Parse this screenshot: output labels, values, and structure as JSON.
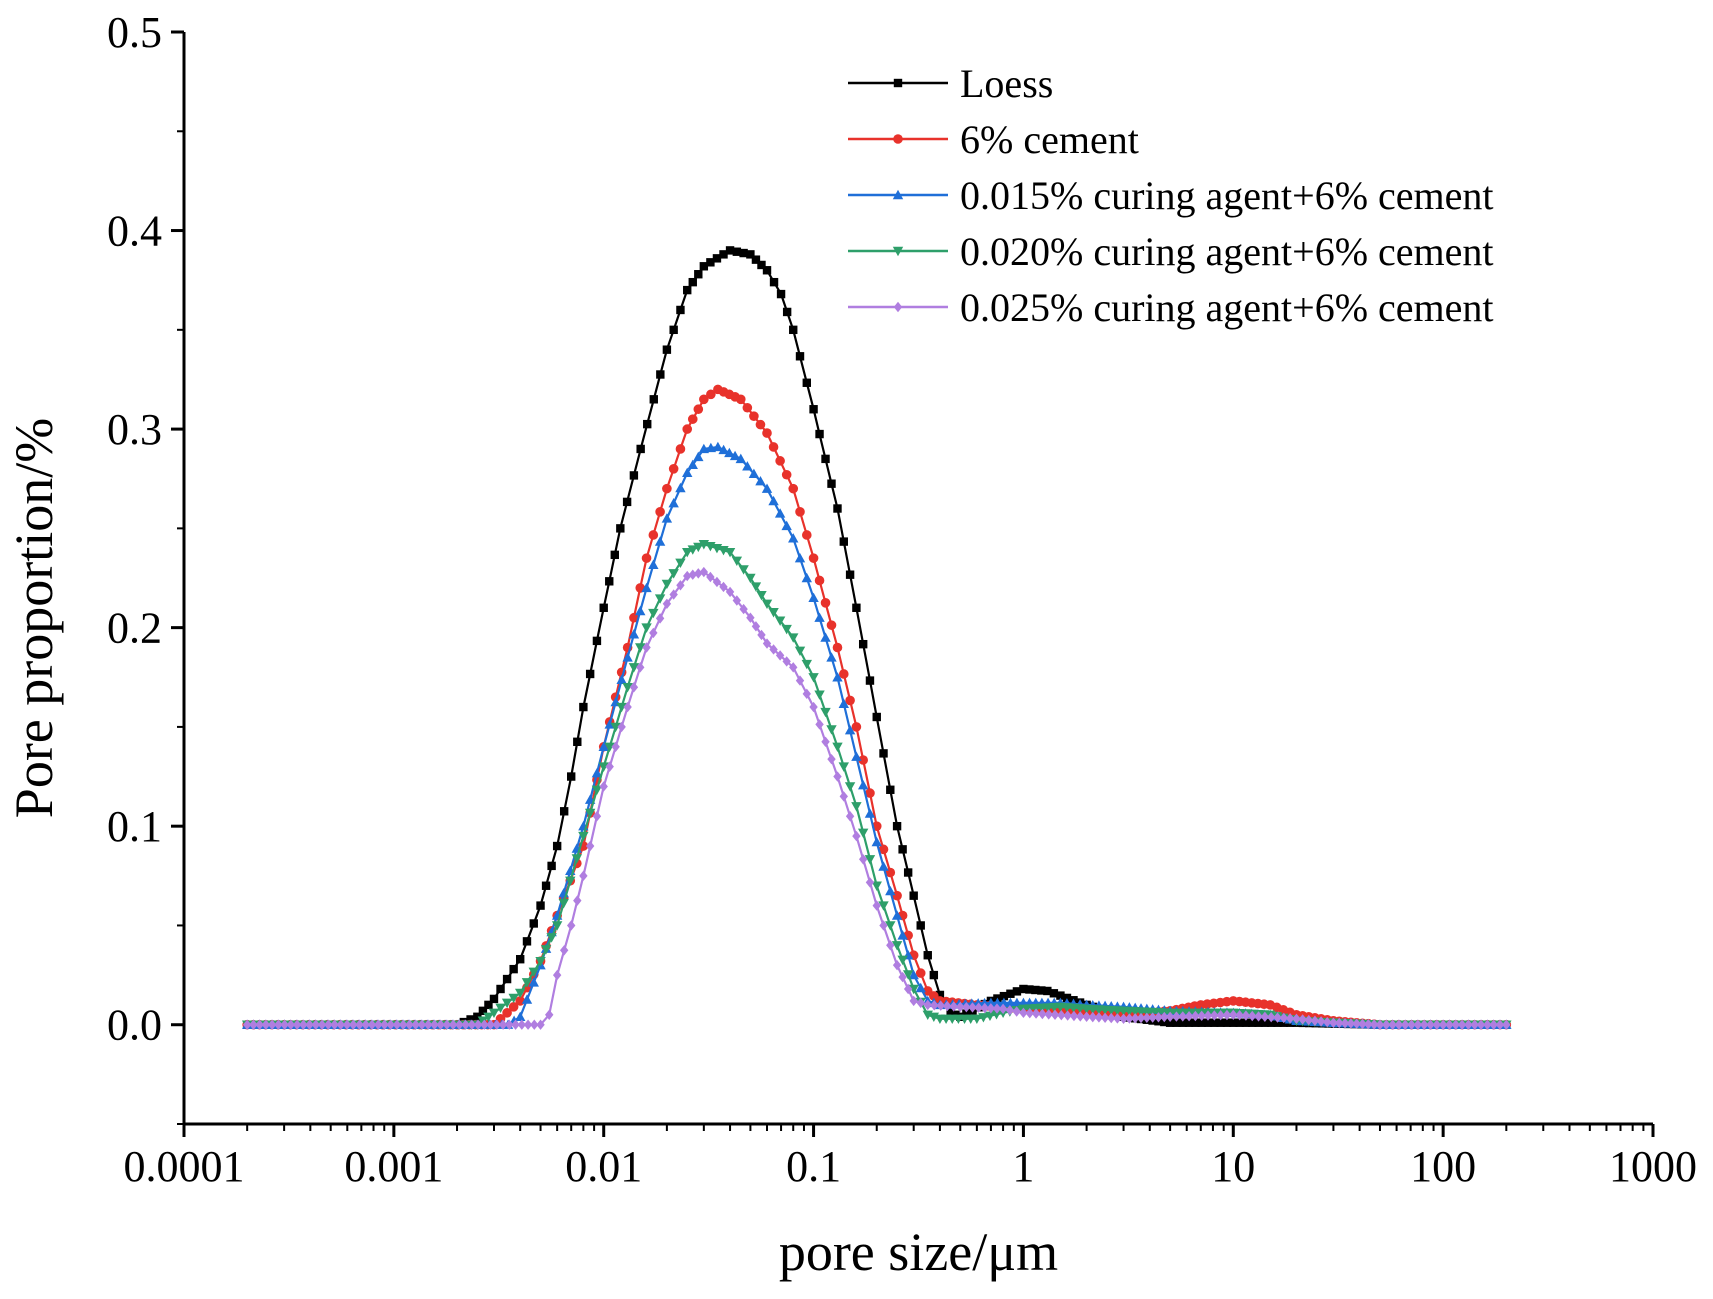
{
  "chart_data": {
    "type": "line",
    "title": "",
    "xlabel": "pore size/μm",
    "ylabel": "Pore proportion/%",
    "xscale": "log",
    "xlim": [
      0.0001,
      1000
    ],
    "ylim": [
      -0.05,
      0.5
    ],
    "xticks": [
      {
        "value": 0.0001,
        "label": "0.0001"
      },
      {
        "value": 0.001,
        "label": "0.001"
      },
      {
        "value": 0.01,
        "label": "0.01"
      },
      {
        "value": 0.1,
        "label": "0.1"
      },
      {
        "value": 1,
        "label": "1"
      },
      {
        "value": 10,
        "label": "10"
      },
      {
        "value": 100,
        "label": "100"
      },
      {
        "value": 1000,
        "label": "1000"
      }
    ],
    "yticks": [
      {
        "value": 0.0,
        "label": "0.0"
      },
      {
        "value": 0.1,
        "label": "0.1"
      },
      {
        "value": 0.2,
        "label": "0.2"
      },
      {
        "value": 0.3,
        "label": "0.3"
      },
      {
        "value": 0.4,
        "label": "0.4"
      },
      {
        "value": 0.5,
        "label": "0.5"
      }
    ],
    "legend_position": "top-right",
    "grid": false,
    "series": [
      {
        "name": "Loess",
        "color": "#000000",
        "marker": "square",
        "points": [
          [
            0.0002,
            0
          ],
          [
            0.002,
            0
          ],
          [
            0.0025,
            0.004
          ],
          [
            0.003,
            0.013
          ],
          [
            0.004,
            0.033
          ],
          [
            0.005,
            0.06
          ],
          [
            0.006,
            0.09
          ],
          [
            0.007,
            0.125
          ],
          [
            0.008,
            0.16
          ],
          [
            0.01,
            0.21
          ],
          [
            0.012,
            0.25
          ],
          [
            0.015,
            0.29
          ],
          [
            0.02,
            0.34
          ],
          [
            0.025,
            0.37
          ],
          [
            0.03,
            0.382
          ],
          [
            0.04,
            0.39
          ],
          [
            0.05,
            0.388
          ],
          [
            0.06,
            0.38
          ],
          [
            0.07,
            0.368
          ],
          [
            0.08,
            0.35
          ],
          [
            0.1,
            0.31
          ],
          [
            0.13,
            0.26
          ],
          [
            0.16,
            0.21
          ],
          [
            0.2,
            0.155
          ],
          [
            0.25,
            0.1
          ],
          [
            0.3,
            0.065
          ],
          [
            0.35,
            0.035
          ],
          [
            0.4,
            0.015
          ],
          [
            0.45,
            0.006
          ],
          [
            0.5,
            0.004
          ],
          [
            0.7,
            0.012
          ],
          [
            1,
            0.018
          ],
          [
            1.3,
            0.017
          ],
          [
            2,
            0.01
          ],
          [
            3,
            0.004
          ],
          [
            5,
            0.001
          ],
          [
            10,
            0.001
          ],
          [
            20,
            0.001
          ],
          [
            50,
            0
          ],
          [
            200,
            0
          ]
        ]
      },
      {
        "name": "6% cement",
        "color": "#e8322b",
        "marker": "circle",
        "points": [
          [
            0.0002,
            0
          ],
          [
            0.003,
            0
          ],
          [
            0.004,
            0.012
          ],
          [
            0.005,
            0.032
          ],
          [
            0.006,
            0.055
          ],
          [
            0.008,
            0.09
          ],
          [
            0.01,
            0.14
          ],
          [
            0.013,
            0.19
          ],
          [
            0.016,
            0.235
          ],
          [
            0.02,
            0.27
          ],
          [
            0.025,
            0.3
          ],
          [
            0.03,
            0.315
          ],
          [
            0.035,
            0.32
          ],
          [
            0.045,
            0.315
          ],
          [
            0.06,
            0.298
          ],
          [
            0.08,
            0.27
          ],
          [
            0.1,
            0.235
          ],
          [
            0.13,
            0.19
          ],
          [
            0.16,
            0.15
          ],
          [
            0.2,
            0.1
          ],
          [
            0.25,
            0.065
          ],
          [
            0.3,
            0.035
          ],
          [
            0.35,
            0.017
          ],
          [
            0.4,
            0.012
          ],
          [
            0.6,
            0.01
          ],
          [
            1,
            0.008
          ],
          [
            2,
            0.006
          ],
          [
            3,
            0.005
          ],
          [
            5,
            0.007
          ],
          [
            7,
            0.01
          ],
          [
            10,
            0.012
          ],
          [
            15,
            0.01
          ],
          [
            20,
            0.005
          ],
          [
            30,
            0.002
          ],
          [
            50,
            0
          ],
          [
            200,
            0
          ]
        ]
      },
      {
        "name": "0.015% curing agent+6% cement",
        "color": "#1f6fd8",
        "marker": "triangle-up",
        "points": [
          [
            0.0002,
            0
          ],
          [
            0.0035,
            0
          ],
          [
            0.004,
            0.004
          ],
          [
            0.005,
            0.03
          ],
          [
            0.006,
            0.055
          ],
          [
            0.008,
            0.1
          ],
          [
            0.01,
            0.14
          ],
          [
            0.013,
            0.185
          ],
          [
            0.016,
            0.22
          ],
          [
            0.02,
            0.255
          ],
          [
            0.025,
            0.278
          ],
          [
            0.03,
            0.29
          ],
          [
            0.035,
            0.291
          ],
          [
            0.045,
            0.285
          ],
          [
            0.06,
            0.27
          ],
          [
            0.08,
            0.245
          ],
          [
            0.1,
            0.215
          ],
          [
            0.13,
            0.175
          ],
          [
            0.16,
            0.135
          ],
          [
            0.2,
            0.092
          ],
          [
            0.25,
            0.055
          ],
          [
            0.3,
            0.025
          ],
          [
            0.35,
            0.012
          ],
          [
            0.4,
            0.01
          ],
          [
            0.7,
            0.011
          ],
          [
            1,
            0.011
          ],
          [
            1.5,
            0.011
          ],
          [
            2,
            0.01
          ],
          [
            3,
            0.009
          ],
          [
            5,
            0.007
          ],
          [
            10,
            0.006
          ],
          [
            15,
            0.005
          ],
          [
            20,
            0.002
          ],
          [
            30,
            0.001
          ],
          [
            50,
            0
          ],
          [
            200,
            0
          ]
        ]
      },
      {
        "name": "0.020% curing agent+6% cement",
        "color": "#2e9f6a",
        "marker": "triangle-down",
        "points": [
          [
            0.0002,
            0
          ],
          [
            0.0025,
            0
          ],
          [
            0.003,
            0.006
          ],
          [
            0.004,
            0.016
          ],
          [
            0.005,
            0.032
          ],
          [
            0.006,
            0.05
          ],
          [
            0.008,
            0.095
          ],
          [
            0.01,
            0.13
          ],
          [
            0.013,
            0.17
          ],
          [
            0.016,
            0.2
          ],
          [
            0.02,
            0.222
          ],
          [
            0.025,
            0.238
          ],
          [
            0.03,
            0.242
          ],
          [
            0.04,
            0.238
          ],
          [
            0.05,
            0.225
          ],
          [
            0.06,
            0.212
          ],
          [
            0.08,
            0.195
          ],
          [
            0.1,
            0.175
          ],
          [
            0.13,
            0.14
          ],
          [
            0.16,
            0.11
          ],
          [
            0.2,
            0.07
          ],
          [
            0.25,
            0.04
          ],
          [
            0.3,
            0.018
          ],
          [
            0.35,
            0.005
          ],
          [
            0.4,
            0.003
          ],
          [
            0.6,
            0.003
          ],
          [
            0.8,
            0.006
          ],
          [
            1,
            0.008
          ],
          [
            1.5,
            0.009
          ],
          [
            2,
            0.008
          ],
          [
            3,
            0.007
          ],
          [
            5,
            0.006
          ],
          [
            10,
            0.006
          ],
          [
            15,
            0.005
          ],
          [
            20,
            0.002
          ],
          [
            30,
            0.001
          ],
          [
            50,
            0
          ],
          [
            200,
            0
          ]
        ]
      },
      {
        "name": "0.025% curing agent+6% cement",
        "color": "#b07ee0",
        "marker": "diamond",
        "points": [
          [
            0.0002,
            0
          ],
          [
            0.005,
            0
          ],
          [
            0.0055,
            0.005
          ],
          [
            0.006,
            0.025
          ],
          [
            0.007,
            0.05
          ],
          [
            0.008,
            0.075
          ],
          [
            0.01,
            0.12
          ],
          [
            0.013,
            0.16
          ],
          [
            0.016,
            0.19
          ],
          [
            0.02,
            0.212
          ],
          [
            0.025,
            0.226
          ],
          [
            0.03,
            0.228
          ],
          [
            0.04,
            0.218
          ],
          [
            0.05,
            0.205
          ],
          [
            0.06,
            0.192
          ],
          [
            0.08,
            0.18
          ],
          [
            0.1,
            0.16
          ],
          [
            0.13,
            0.125
          ],
          [
            0.16,
            0.095
          ],
          [
            0.2,
            0.06
          ],
          [
            0.25,
            0.03
          ],
          [
            0.3,
            0.012
          ],
          [
            0.35,
            0.01
          ],
          [
            0.5,
            0.009
          ],
          [
            0.8,
            0.008
          ],
          [
            1,
            0.006
          ],
          [
            2,
            0.004
          ],
          [
            3,
            0.003
          ],
          [
            5,
            0.004
          ],
          [
            10,
            0.005
          ],
          [
            20,
            0.003
          ],
          [
            30,
            0.001
          ],
          [
            50,
            0
          ],
          [
            200,
            0
          ]
        ]
      }
    ]
  }
}
